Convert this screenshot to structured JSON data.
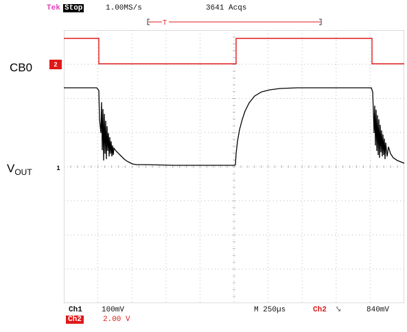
{
  "status_bar": {
    "brand": "Tek",
    "run_state": "Stop",
    "sample_rate": "1.00MS/s",
    "acquisitions": "3641 Acqs"
  },
  "trigger_position": {
    "marker": "T"
  },
  "channels": {
    "ch2_marker": "2",
    "ch1_marker": "1",
    "ch2_label": "CB0",
    "ch1_label_main": "V",
    "ch1_label_sub": "OUT"
  },
  "readouts": {
    "ch1": "Ch1",
    "ch1_scale": "100mV",
    "ch2": "Ch2",
    "ch2_scale": "2.00 V",
    "timebase": "M  250µs",
    "trigger_source": "Ch2",
    "trigger_slope": "⤥",
    "trigger_level": "840mV"
  },
  "colors": {
    "ch2_trace": "#e01818",
    "ch1_trace": "#000000",
    "grid": "#b8b8b8"
  }
}
